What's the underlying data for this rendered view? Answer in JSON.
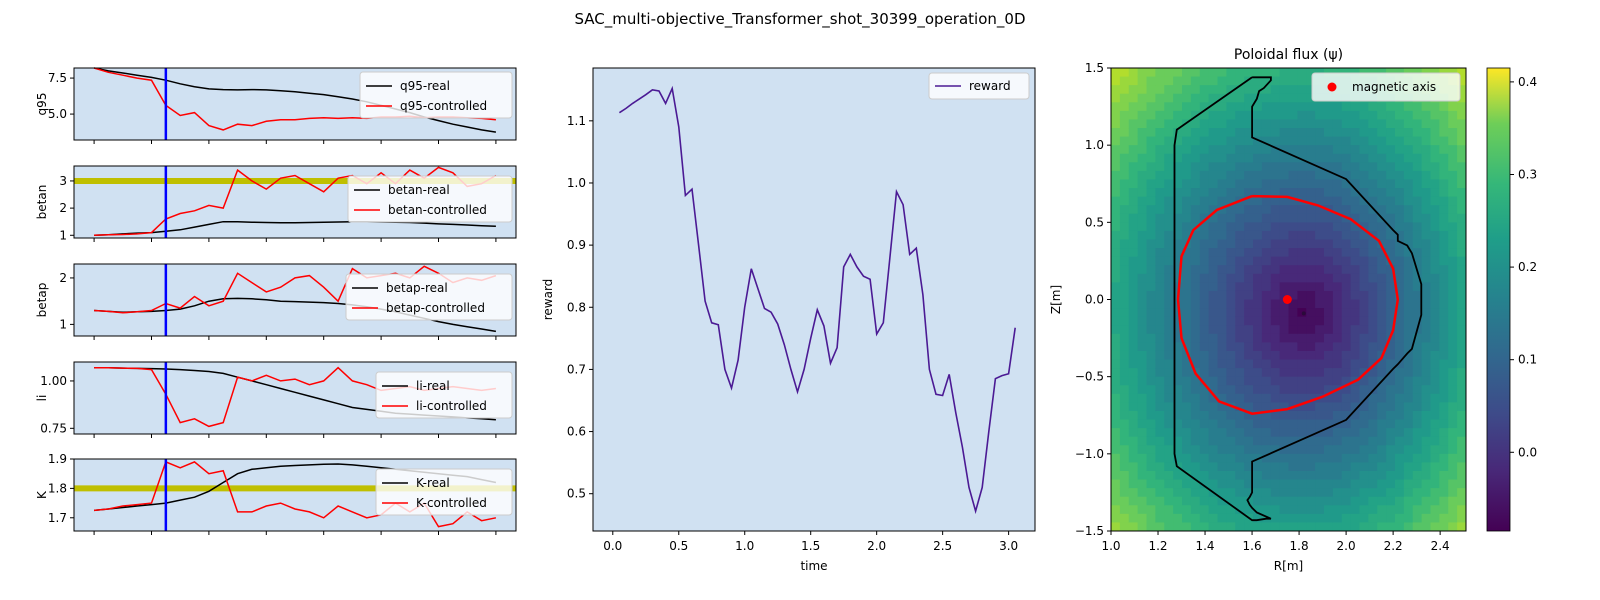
{
  "figure": {
    "title": "SAC_multi-objective_Transformer_shot_30399_operation_0D"
  },
  "colors": {
    "panel_bg": "#d0e1f2",
    "real": "#000000",
    "controlled": "#ff0000",
    "marker": "#0000ff",
    "target": "#bfbf00",
    "reward": "#4b1a94",
    "boundary": "#000000",
    "lcfs": "#ff0000",
    "axis_point": "#ff0000"
  },
  "chart_data": [
    {
      "type": "line",
      "ylabel": "q95",
      "ylim": [
        3.2,
        8.2
      ],
      "yticks": [
        "5.0",
        "7.5"
      ],
      "ytick_values": [
        5.0,
        7.5
      ],
      "xlim": [
        -1.4,
        29.4
      ],
      "x": [
        0,
        1,
        2,
        3,
        4,
        5,
        6,
        7,
        8,
        9,
        10,
        11,
        12,
        13,
        14,
        15,
        16,
        17,
        18,
        19,
        20,
        21,
        22,
        23,
        24,
        25,
        26,
        27,
        28
      ],
      "marker_x": 5,
      "target": null,
      "legend": "top-right",
      "series": [
        {
          "name": "q95-real",
          "role": "real",
          "values": [
            8.2,
            8.0,
            7.85,
            7.7,
            7.55,
            7.35,
            7.1,
            6.9,
            6.75,
            6.7,
            6.68,
            6.7,
            6.68,
            6.62,
            6.55,
            6.45,
            6.35,
            6.2,
            6.05,
            5.85,
            5.6,
            5.35,
            5.1,
            4.8,
            4.55,
            4.3,
            4.1,
            3.9,
            3.75
          ]
        },
        {
          "name": "q95-controlled",
          "role": "controlled",
          "values": [
            8.2,
            7.9,
            7.7,
            7.5,
            7.35,
            5.6,
            4.9,
            5.1,
            4.2,
            3.9,
            4.3,
            4.2,
            4.5,
            4.6,
            4.6,
            4.7,
            4.75,
            4.7,
            4.75,
            4.7,
            4.8,
            4.8,
            4.85,
            4.75,
            4.8,
            4.8,
            4.75,
            4.7,
            4.6
          ]
        }
      ]
    },
    {
      "type": "line",
      "ylabel": "betan",
      "ylim": [
        0.9,
        3.55
      ],
      "yticks": [
        "1",
        "2",
        "3"
      ],
      "ytick_values": [
        1,
        2,
        3
      ],
      "xlim": [
        -1.4,
        29.4
      ],
      "x": [
        0,
        1,
        2,
        3,
        4,
        5,
        6,
        7,
        8,
        9,
        10,
        11,
        12,
        13,
        14,
        15,
        16,
        17,
        18,
        19,
        20,
        21,
        22,
        23,
        24,
        25,
        26,
        27,
        28
      ],
      "marker_x": 5,
      "target": 3.0,
      "legend": "right",
      "series": [
        {
          "name": "betan-real",
          "role": "real",
          "values": [
            1.0,
            1.02,
            1.05,
            1.08,
            1.1,
            1.15,
            1.2,
            1.3,
            1.4,
            1.5,
            1.5,
            1.48,
            1.47,
            1.46,
            1.46,
            1.47,
            1.48,
            1.49,
            1.5,
            1.5,
            1.49,
            1.48,
            1.47,
            1.45,
            1.42,
            1.4,
            1.38,
            1.35,
            1.33
          ]
        },
        {
          "name": "betan-controlled",
          "role": "controlled",
          "values": [
            1.0,
            1.02,
            1.03,
            1.05,
            1.1,
            1.6,
            1.8,
            1.9,
            2.1,
            2.0,
            3.4,
            3.0,
            2.7,
            3.1,
            3.2,
            2.9,
            2.6,
            3.1,
            3.2,
            2.9,
            3.3,
            2.9,
            3.4,
            3.1,
            3.5,
            3.3,
            2.8,
            2.9,
            3.2
          ]
        }
      ]
    },
    {
      "type": "line",
      "ylabel": "betap",
      "ylim": [
        0.75,
        2.3
      ],
      "yticks": [
        "1",
        "2"
      ],
      "ytick_values": [
        1,
        2
      ],
      "xlim": [
        -1.4,
        29.4
      ],
      "x": [
        0,
        1,
        2,
        3,
        4,
        5,
        6,
        7,
        8,
        9,
        10,
        11,
        12,
        13,
        14,
        15,
        16,
        17,
        18,
        19,
        20,
        21,
        22,
        23,
        24,
        25,
        26,
        27,
        28
      ],
      "marker_x": 5,
      "target": null,
      "legend": "right",
      "series": [
        {
          "name": "betap-real",
          "role": "real",
          "values": [
            1.3,
            1.28,
            1.26,
            1.27,
            1.28,
            1.3,
            1.33,
            1.4,
            1.5,
            1.55,
            1.56,
            1.55,
            1.53,
            1.5,
            1.49,
            1.48,
            1.47,
            1.45,
            1.42,
            1.38,
            1.33,
            1.27,
            1.2,
            1.13,
            1.06,
            1.0,
            0.95,
            0.9,
            0.85
          ]
        },
        {
          "name": "betap-controlled",
          "role": "controlled",
          "values": [
            1.3,
            1.28,
            1.25,
            1.27,
            1.3,
            1.45,
            1.35,
            1.6,
            1.4,
            1.5,
            2.1,
            1.9,
            1.7,
            1.8,
            2.0,
            2.05,
            1.8,
            1.5,
            2.2,
            2.0,
            2.05,
            2.1,
            2.0,
            2.25,
            2.1,
            1.9,
            2.0,
            1.95,
            2.05
          ]
        }
      ]
    },
    {
      "type": "line",
      "ylabel": "li",
      "ylim": [
        0.72,
        1.1
      ],
      "yticks": [
        "0.75",
        "1.00"
      ],
      "ytick_values": [
        0.75,
        1.0
      ],
      "xlim": [
        -1.4,
        29.4
      ],
      "x": [
        0,
        1,
        2,
        3,
        4,
        5,
        6,
        7,
        8,
        9,
        10,
        11,
        12,
        13,
        14,
        15,
        16,
        17,
        18,
        19,
        20,
        21,
        22,
        23,
        24,
        25,
        26,
        27,
        28
      ],
      "marker_x": 5,
      "target": null,
      "legend": "right",
      "series": [
        {
          "name": "li-real",
          "role": "real",
          "values": [
            1.07,
            1.07,
            1.068,
            1.066,
            1.065,
            1.063,
            1.06,
            1.055,
            1.05,
            1.04,
            1.02,
            1.0,
            0.98,
            0.96,
            0.94,
            0.92,
            0.9,
            0.88,
            0.86,
            0.85,
            0.84,
            0.83,
            0.825,
            0.82,
            0.815,
            0.81,
            0.805,
            0.8,
            0.795
          ]
        },
        {
          "name": "li-controlled",
          "role": "controlled",
          "values": [
            1.07,
            1.07,
            1.068,
            1.066,
            1.06,
            0.93,
            0.78,
            0.8,
            0.76,
            0.78,
            1.02,
            1.0,
            1.03,
            1.0,
            1.01,
            0.98,
            1.0,
            1.07,
            1.0,
            0.98,
            0.95,
            0.96,
            0.97,
            0.95,
            0.96,
            0.97,
            0.96,
            0.95,
            0.96
          ]
        }
      ]
    },
    {
      "type": "line",
      "ylabel": "K",
      "ylim": [
        1.655,
        1.9
      ],
      "yticks": [
        "1.7",
        "1.8",
        "1.9"
      ],
      "ytick_values": [
        1.7,
        1.8,
        1.9
      ],
      "xlim": [
        -1.4,
        29.4
      ],
      "x": [
        0,
        1,
        2,
        3,
        4,
        5,
        6,
        7,
        8,
        9,
        10,
        11,
        12,
        13,
        14,
        15,
        16,
        17,
        18,
        19,
        20,
        21,
        22,
        23,
        24,
        25,
        26,
        27,
        28
      ],
      "marker_x": 5,
      "target": 1.8,
      "legend": "right",
      "series": [
        {
          "name": "K-real",
          "role": "real",
          "values": [
            1.725,
            1.73,
            1.735,
            1.74,
            1.745,
            1.75,
            1.76,
            1.77,
            1.79,
            1.82,
            1.85,
            1.865,
            1.87,
            1.875,
            1.878,
            1.88,
            1.882,
            1.883,
            1.88,
            1.875,
            1.87,
            1.865,
            1.86,
            1.855,
            1.85,
            1.845,
            1.84,
            1.83,
            1.82
          ]
        },
        {
          "name": "K-controlled",
          "role": "controlled",
          "values": [
            1.725,
            1.73,
            1.74,
            1.745,
            1.75,
            1.89,
            1.87,
            1.89,
            1.85,
            1.86,
            1.72,
            1.72,
            1.74,
            1.75,
            1.73,
            1.72,
            1.7,
            1.74,
            1.72,
            1.7,
            1.71,
            1.75,
            1.72,
            1.75,
            1.67,
            1.68,
            1.72,
            1.69,
            1.7
          ]
        }
      ]
    },
    {
      "type": "line",
      "title": "",
      "xlabel": "time",
      "ylabel": "reward",
      "xlim": [
        -0.15,
        3.2
      ],
      "ylim": [
        0.44,
        1.185
      ],
      "xticks": [
        "0.0",
        "0.5",
        "1.0",
        "1.5",
        "2.0",
        "2.5",
        "3.0"
      ],
      "xtick_values": [
        0.0,
        0.5,
        1.0,
        1.5,
        2.0,
        2.5,
        3.0
      ],
      "yticks": [
        "0.5",
        "0.6",
        "0.7",
        "0.8",
        "0.9",
        "1.0",
        "1.1"
      ],
      "ytick_values": [
        0.5,
        0.6,
        0.7,
        0.8,
        0.9,
        1.0,
        1.1
      ],
      "legend": "top-right",
      "series": [
        {
          "name": "reward",
          "x": [
            0.05,
            0.1,
            0.15,
            0.2,
            0.25,
            0.3,
            0.35,
            0.4,
            0.45,
            0.5,
            0.55,
            0.6,
            0.65,
            0.7,
            0.75,
            0.8,
            0.85,
            0.9,
            0.95,
            1.0,
            1.05,
            1.1,
            1.15,
            1.2,
            1.25,
            1.3,
            1.35,
            1.4,
            1.45,
            1.5,
            1.55,
            1.6,
            1.65,
            1.7,
            1.75,
            1.8,
            1.85,
            1.9,
            1.95,
            2.0,
            2.05,
            2.1,
            2.15,
            2.2,
            2.25,
            2.3,
            2.35,
            2.4,
            2.45,
            2.5,
            2.55,
            2.6,
            2.65,
            2.7,
            2.75,
            2.8,
            2.85,
            2.9,
            2.95,
            3.0,
            3.05
          ],
          "values": [
            1.113,
            1.12,
            1.128,
            1.135,
            1.142,
            1.15,
            1.148,
            1.128,
            1.152,
            1.09,
            0.98,
            0.99,
            0.9,
            0.81,
            0.775,
            0.772,
            0.7,
            0.67,
            0.715,
            0.8,
            0.862,
            0.83,
            0.798,
            0.792,
            0.773,
            0.74,
            0.7,
            0.664,
            0.7,
            0.75,
            0.796,
            0.77,
            0.71,
            0.735,
            0.865,
            0.885,
            0.865,
            0.85,
            0.845,
            0.757,
            0.775,
            0.88,
            0.986,
            0.965,
            0.885,
            0.895,
            0.82,
            0.7,
            0.66,
            0.658,
            0.692,
            0.63,
            0.575,
            0.51,
            0.472,
            0.51,
            0.6,
            0.685,
            0.69,
            0.693,
            0.767
          ]
        }
      ]
    },
    {
      "type": "heatmap",
      "title": "Poloidal flux (ψ)",
      "xlabel": "R[m]",
      "ylabel": "Z[m]",
      "xlim": [
        1.0,
        2.51
      ],
      "ylim": [
        -1.5,
        1.5
      ],
      "xticks": [
        "1.0",
        "1.2",
        "1.4",
        "1.6",
        "1.8",
        "2.0",
        "2.2",
        "2.4"
      ],
      "xtick_values": [
        1.0,
        1.2,
        1.4,
        1.6,
        1.8,
        2.0,
        2.2,
        2.4
      ],
      "yticks": [
        "−1.5",
        "−1.0",
        "−0.5",
        "0.0",
        "0.5",
        "1.0",
        "1.5"
      ],
      "ytick_values": [
        -1.5,
        -1.0,
        -0.5,
        0.0,
        0.5,
        1.0,
        1.5
      ],
      "colorbar": {
        "range": [
          -0.085,
          0.415
        ],
        "ticks": [
          "0.0",
          "0.1",
          "0.2",
          "0.3",
          "0.4"
        ],
        "tick_values": [
          0.0,
          0.1,
          0.2,
          0.3,
          0.4
        ],
        "colormap": "viridis"
      },
      "magnetic_axis": {
        "R": 1.75,
        "Z": 0.0,
        "label": "magnetic axis"
      },
      "psi_minimum": {
        "R": 1.82,
        "Z": -0.09
      },
      "legend": "top-right",
      "wall": [
        [
          1.6,
          1.44
        ],
        [
          1.68,
          1.44
        ],
        [
          1.68,
          1.42
        ],
        [
          1.65,
          1.37
        ],
        [
          1.63,
          1.35
        ],
        [
          1.62,
          1.3
        ],
        [
          1.6,
          1.25
        ],
        [
          1.6,
          1.15
        ],
        [
          1.6,
          1.1
        ],
        [
          1.6,
          1.05
        ],
        [
          2.0,
          0.78
        ],
        [
          2.2,
          0.45
        ],
        [
          2.22,
          0.42
        ],
        [
          2.22,
          0.38
        ],
        [
          2.26,
          0.35
        ],
        [
          2.28,
          0.3
        ],
        [
          2.32,
          0.1
        ],
        [
          2.32,
          -0.1
        ],
        [
          2.28,
          -0.32
        ],
        [
          2.26,
          -0.35
        ],
        [
          2.22,
          -0.42
        ],
        [
          2.2,
          -0.45
        ],
        [
          2.0,
          -0.78
        ],
        [
          1.6,
          -1.05
        ],
        [
          1.6,
          -1.1
        ],
        [
          1.6,
          -1.15
        ],
        [
          1.6,
          -1.25
        ],
        [
          1.59,
          -1.28
        ],
        [
          1.58,
          -1.3
        ],
        [
          1.59,
          -1.33
        ],
        [
          1.6,
          -1.35
        ],
        [
          1.62,
          -1.38
        ],
        [
          1.68,
          -1.42
        ],
        [
          1.66,
          -1.42
        ],
        [
          1.62,
          -1.43
        ],
        [
          1.6,
          -1.43
        ],
        [
          1.28,
          -1.08
        ],
        [
          1.27,
          -1.0
        ],
        [
          1.27,
          1.0
        ],
        [
          1.28,
          1.1
        ],
        [
          1.6,
          1.44
        ]
      ],
      "lcfs": [
        [
          1.6,
          0.67
        ],
        [
          1.45,
          0.58
        ],
        [
          1.35,
          0.45
        ],
        [
          1.3,
          0.28
        ],
        [
          1.285,
          0.0
        ],
        [
          1.3,
          -0.25
        ],
        [
          1.36,
          -0.48
        ],
        [
          1.46,
          -0.66
        ],
        [
          1.6,
          -0.74
        ],
        [
          1.75,
          -0.71
        ],
        [
          1.9,
          -0.63
        ],
        [
          2.05,
          -0.52
        ],
        [
          2.15,
          -0.38
        ],
        [
          2.2,
          -0.2
        ],
        [
          2.22,
          0.0
        ],
        [
          2.2,
          0.2
        ],
        [
          2.14,
          0.38
        ],
        [
          2.02,
          0.52
        ],
        [
          1.88,
          0.61
        ],
        [
          1.75,
          0.665
        ],
        [
          1.6,
          0.67
        ]
      ]
    }
  ]
}
